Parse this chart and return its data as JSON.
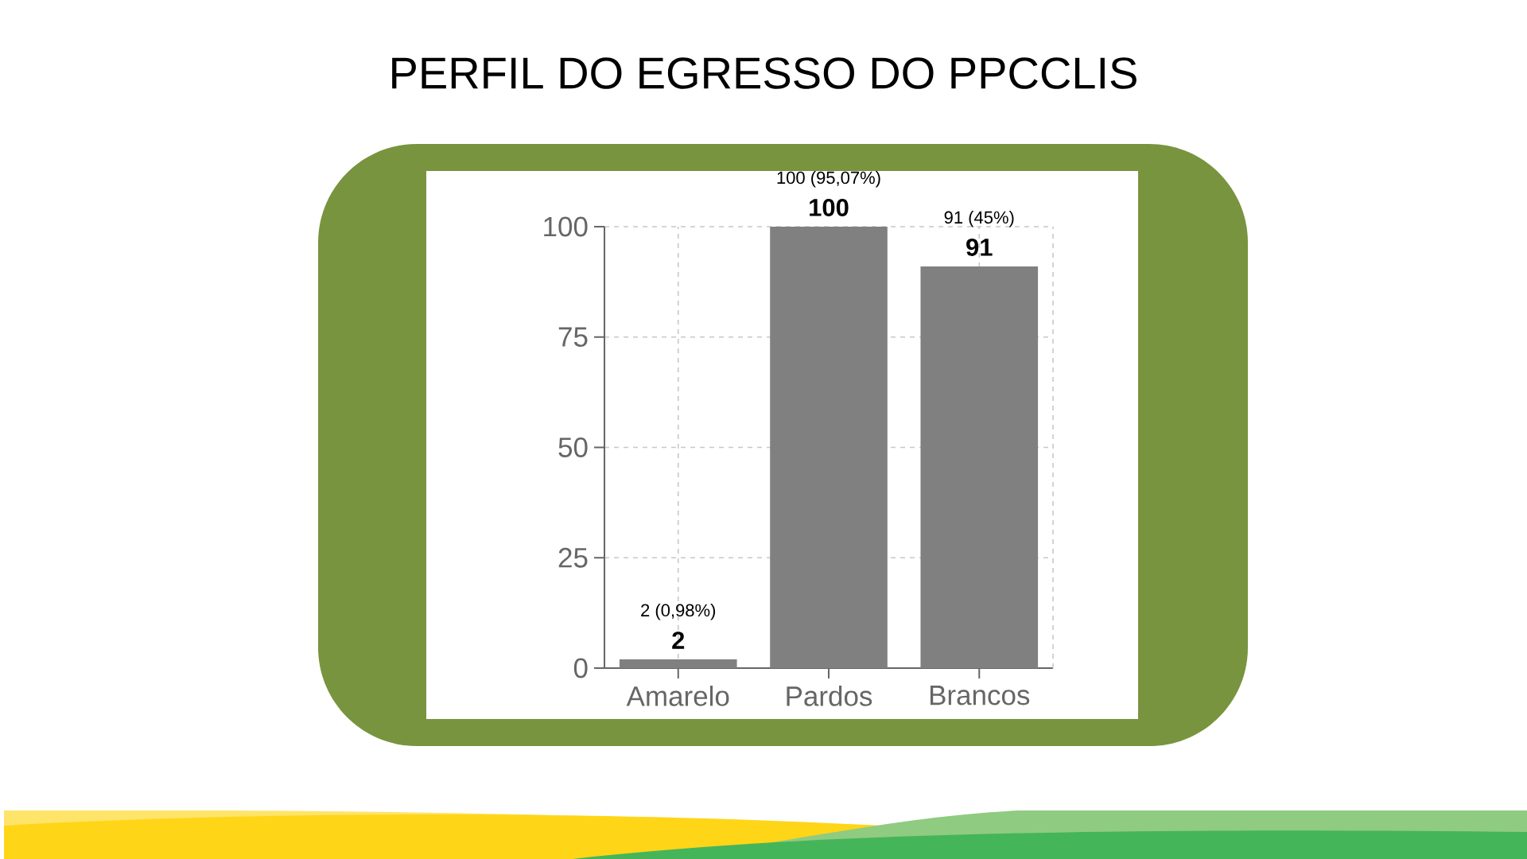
{
  "chart_data": {
    "type": "bar",
    "title": "PERFIL DO EGRESSO DO PPCCLIS",
    "categories": [
      "Amarelo",
      "Pardos",
      "Brancos"
    ],
    "values": [
      2,
      100,
      91
    ],
    "color": "#808080",
    "ylim": [
      0,
      100
    ],
    "yticks": [
      0,
      25,
      50,
      75,
      100
    ],
    "grid": true,
    "data_labels": true,
    "annotations": [
      {
        "text": "2 (0,98%)",
        "x": "Amarelo",
        "y": 2
      },
      {
        "text": "100 (95,07%)",
        "x": "Pardos",
        "y": 100
      },
      {
        "text": "91 (45%)",
        "x": "Brancos",
        "y": 91
      }
    ]
  }
}
